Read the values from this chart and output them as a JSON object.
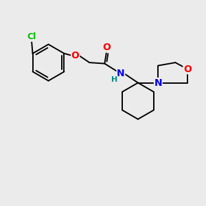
{
  "background_color": "#ebebeb",
  "atom_colors": {
    "C": "#000000",
    "Cl": "#00bb00",
    "O": "#ff0000",
    "N": "#0000ee",
    "H": "#008888"
  },
  "bond_color": "#000000",
  "bond_width": 1.4,
  "figsize": [
    3.0,
    3.0
  ],
  "dpi": 100
}
